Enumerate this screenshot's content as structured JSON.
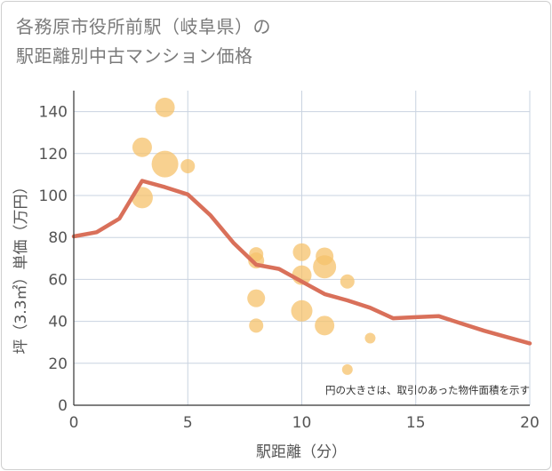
{
  "title": {
    "line1": "各務原市役所前駅（岐阜県）の",
    "line2": "駅距離別中古マンション価格"
  },
  "note": "円の大きさは、取引のあった物件面積を示す",
  "colors": {
    "line": "#d9705a",
    "bubble": "#f5c26b",
    "grid": "#c9d3e0",
    "background": "#ffffff"
  },
  "chart_data": {
    "type": "scatter",
    "xlabel": "駅距離（分）",
    "ylabel": "坪（3.3㎡）単価（万円）",
    "xlim": [
      0,
      20
    ],
    "ylim": [
      0,
      150
    ],
    "xticks": [
      0,
      5,
      10,
      15,
      20
    ],
    "yticks": [
      0,
      20,
      40,
      60,
      80,
      100,
      120,
      140
    ],
    "grid": true,
    "series": [
      {
        "type": "scatter",
        "points": [
          {
            "x": 3,
            "y": 123,
            "size": 11
          },
          {
            "x": 3,
            "y": 99,
            "size": 12
          },
          {
            "x": 4,
            "y": 142,
            "size": 11
          },
          {
            "x": 4,
            "y": 115,
            "size": 15
          },
          {
            "x": 5,
            "y": 114,
            "size": 8
          },
          {
            "x": 8,
            "y": 72,
            "size": 8
          },
          {
            "x": 8,
            "y": 69,
            "size": 9
          },
          {
            "x": 8,
            "y": 51,
            "size": 10
          },
          {
            "x": 8,
            "y": 38,
            "size": 8
          },
          {
            "x": 10,
            "y": 73,
            "size": 10
          },
          {
            "x": 10,
            "y": 62,
            "size": 11
          },
          {
            "x": 10,
            "y": 45,
            "size": 12
          },
          {
            "x": 11,
            "y": 71,
            "size": 10
          },
          {
            "x": 11,
            "y": 66,
            "size": 13
          },
          {
            "x": 11,
            "y": 38,
            "size": 11
          },
          {
            "x": 12,
            "y": 59,
            "size": 8
          },
          {
            "x": 12,
            "y": 17,
            "size": 6
          },
          {
            "x": 13,
            "y": 32,
            "size": 6
          }
        ]
      },
      {
        "type": "line",
        "x": [
          0,
          1,
          2,
          3,
          4,
          5,
          6,
          7,
          8,
          9,
          10,
          11,
          12,
          13,
          14,
          15,
          16,
          17,
          18,
          19,
          20
        ],
        "y": [
          80.5,
          82.5,
          89,
          107,
          104,
          100.5,
          90.5,
          77.5,
          67,
          65,
          59,
          53,
          50,
          46.5,
          41.5,
          42,
          42.5,
          39,
          35.5,
          32.5,
          29.5
        ]
      }
    ]
  }
}
